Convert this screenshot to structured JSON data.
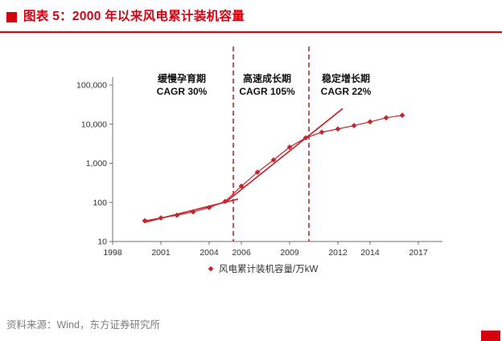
{
  "header": {
    "title": "图表 5：2000 年以来风电累计装机容量"
  },
  "footer": {
    "source": "资料来源：Wind，东方证券研究所"
  },
  "colors": {
    "accent": "#d7000f"
  },
  "chart_data": {
    "type": "line",
    "title": "2000 年以来风电累计装机容量",
    "y_scale": "log",
    "ylim": [
      10,
      100000
    ],
    "x_range": [
      1998,
      2018.5
    ],
    "y_ticks": [
      10,
      100,
      1000,
      10000,
      100000
    ],
    "x_ticks": [
      1998,
      2001,
      2004,
      2006,
      2009,
      2012,
      2014,
      2017
    ],
    "series": [
      {
        "name": "风电累计装机容量/万kW",
        "x": [
          2000,
          2001,
          2002,
          2003,
          2004,
          2005,
          2006,
          2007,
          2008,
          2009,
          2010,
          2011,
          2012,
          2013,
          2014,
          2015,
          2016
        ],
        "values": [
          34,
          40,
          47,
          57,
          74,
          106,
          260,
          590,
          1217,
          2581,
          4473,
          6236,
          7532,
          9174,
          11476,
          14536,
          16873
        ]
      }
    ],
    "phase_dividers_x": [
      2005.5,
      2010.2
    ],
    "annotations": [
      {
        "lines": [
          "缓慢孕育期",
          "CAGR 30%"
        ],
        "x": 2002.3
      },
      {
        "lines": [
          "高速成长期",
          "CAGR 105%"
        ],
        "x": 2007.6
      },
      {
        "lines": [
          "稳定增长期",
          "CAGR 22%"
        ],
        "x": 2012.5
      }
    ],
    "trendlines": [
      {
        "x1": 2000,
        "y1": 31,
        "x2": 2005.8,
        "y2": 122
      },
      {
        "x1": 2005.0,
        "y1": 100,
        "x2": 2012.3,
        "y2": 25000
      }
    ],
    "legend_label": "风电累计装机容量/万kW",
    "colors": {
      "series": "#c5262c",
      "axis": "#6f6f6f",
      "annotation": "#111111"
    }
  }
}
